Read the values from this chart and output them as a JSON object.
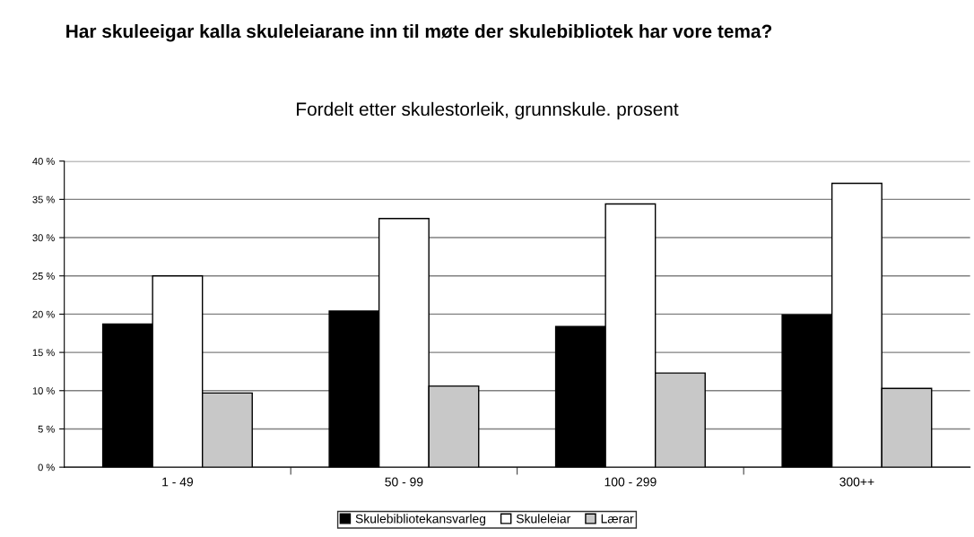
{
  "chart_data": {
    "type": "bar",
    "title": "Har skuleeigar kalla skuleleiarane inn til møte der skulebibliotek har vore tema?",
    "subtitle": "Fordelt etter skulestorleik, grunnskule. prosent",
    "categories": [
      "1 - 49",
      "50 - 99",
      "100 - 299",
      "300++"
    ],
    "series": [
      {
        "name": "Skulebibliotekansvarleg",
        "color": "#000000",
        "values": [
          18.7,
          20.4,
          18.4,
          19.9
        ]
      },
      {
        "name": "Skuleleiar",
        "color": "#ffffff",
        "values": [
          25.0,
          32.5,
          34.4,
          37.1
        ]
      },
      {
        "name": "Lærar",
        "color": "#c8c8c8",
        "values": [
          9.7,
          10.6,
          12.3,
          10.3
        ]
      }
    ],
    "ylim": [
      0,
      40
    ],
    "yticks": [
      {
        "value": 0,
        "label": "0 %"
      },
      {
        "value": 5,
        "label": "5 %"
      },
      {
        "value": 10,
        "label": "10 %"
      },
      {
        "value": 15,
        "label": "15 %"
      },
      {
        "value": 20,
        "label": "20 %"
      },
      {
        "value": 25,
        "label": "25 %"
      },
      {
        "value": 30,
        "label": "30 %"
      },
      {
        "value": 35,
        "label": "35 %"
      },
      {
        "value": 40,
        "label": "40 %"
      }
    ],
    "grid": "y",
    "legend": "bottom"
  }
}
